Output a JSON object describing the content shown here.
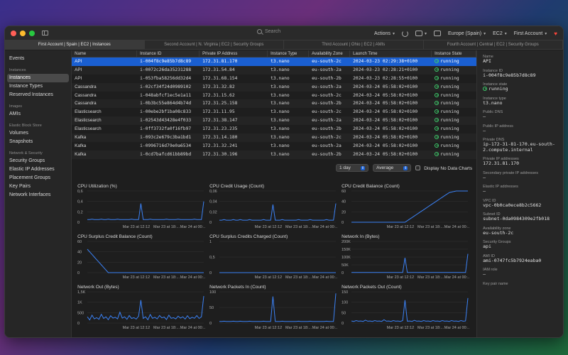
{
  "toolbar": {
    "search_placeholder": "Search",
    "actions_label": "Actions",
    "region_label": "Europe (Spain)",
    "service_label": "EC2",
    "account_label": "First Account"
  },
  "tabs": [
    {
      "label": "First Account | Spain | EC2 | Instances"
    },
    {
      "label": "Second Account | N. Virginia | EC2 | Security Groups"
    },
    {
      "label": "Third Account | Ohio | EC2 | AMIs"
    },
    {
      "label": "Fourth Account | Central | EC2 | Security Groups"
    }
  ],
  "sidebar": {
    "events": "Events",
    "sections": [
      {
        "title": "Instances",
        "items": [
          "Instances",
          "Instance Types",
          "Reserved Instances"
        ]
      },
      {
        "title": "Images",
        "items": [
          "AMIs"
        ]
      },
      {
        "title": "Elastic Block Store",
        "items": [
          "Volumes",
          "Snapshots"
        ]
      },
      {
        "title": "Network & Security",
        "items": [
          "Security Groups",
          "Elastic IP Addresses",
          "Placement Groups",
          "Key Pairs",
          "Network Interfaces"
        ]
      }
    ]
  },
  "table": {
    "columns": [
      "Name",
      "Instance ID",
      "Private IP Address",
      "Instance Type",
      "Availability Zone",
      "Launch Time",
      "Instance State"
    ],
    "rows": [
      [
        "API",
        "i-004f8c9e85b7d8c89",
        "172.31.81.170",
        "t3.nano",
        "eu-south-2c",
        "2024-03-23 02:29:38+0100",
        "running"
      ],
      [
        "API",
        "i-0072c26da35231288",
        "172.31.54.84",
        "t3.nano",
        "eu-south-2a",
        "2024-03-23 02:28:21+0100",
        "running"
      ],
      [
        "API",
        "i-053fba58256dd32d4",
        "172.31.68.154",
        "t3.nano",
        "eu-south-2b",
        "2024-03-23 02:28:55+0100",
        "running"
      ],
      [
        "Cassandra",
        "i-02cf34f24d0989102",
        "172.31.32.82",
        "t3.nano",
        "eu-south-2a",
        "2024-03-24 05:58:02+0100",
        "running"
      ],
      [
        "Cassandra",
        "i-048abfcf1ec5e1a11",
        "172.31.15.62",
        "t3.nano",
        "eu-south-2c",
        "2024-03-24 05:58:02+0100",
        "running"
      ],
      [
        "Cassandra",
        "i-0b3bc55e864d4b74d",
        "172.31.25.158",
        "t3.nano",
        "eu-south-2b",
        "2024-03-24 05:58:02+0100",
        "running"
      ],
      [
        "Elasticsearch",
        "i-00ebe2bf1ba08c833",
        "172.31.11.95",
        "t3.nano",
        "eu-south-2c",
        "2024-03-24 05:58:02+0100",
        "running"
      ],
      [
        "Elasticsearch",
        "i-02543d43428e4f033",
        "172.31.38.147",
        "t3.nano",
        "eu-south-2a",
        "2024-03-24 05:58:02+0100",
        "running"
      ],
      [
        "Elasticsearch",
        "i-0ff3732fa0f16fb97",
        "172.31.23.235",
        "t3.nano",
        "eu-south-2b",
        "2024-03-24 05:58:02+0100",
        "running"
      ],
      [
        "Kafka",
        "i-093c2e679c3ba1bd1",
        "172.31.14.180",
        "t3.nano",
        "eu-south-2c",
        "2024-03-24 05:58:02+0100",
        "running"
      ],
      [
        "Kafka",
        "i-0996716d79e0a6534",
        "172.31.32.241",
        "t3.nano",
        "eu-south-2a",
        "2024-03-24 05:58:02+0100",
        "running"
      ],
      [
        "Kafka",
        "i-0cd7bafcd61bb89bd",
        "172.31.30.196",
        "t3.nano",
        "eu-south-2b",
        "2024-03-24 05:58:02+0100",
        "running"
      ]
    ]
  },
  "chart_controls": {
    "range": "1 day",
    "stat": "Average",
    "no_data_label": "Display No Data Charts"
  },
  "chart_data": [
    {
      "type": "line",
      "title": "CPU Utilization (%)",
      "yticks": [
        "0,6",
        "0,4",
        "0,2",
        "0"
      ],
      "ylim": [
        0,
        0.6
      ],
      "xticks": [
        "Mar 23 at 12:12",
        "Mar 23 at 18:...",
        "Mar 24 at 00:..."
      ],
      "values": [
        0.05,
        0.05,
        0.06,
        0.05,
        0.05,
        0.05,
        0.06,
        0.05,
        0.05,
        0.06,
        0.05,
        0.05,
        0.05,
        0.06,
        0.05,
        0.05,
        0.05,
        0.05,
        0.05,
        0.06,
        0.05,
        0.05,
        0.05,
        0.36,
        0.05,
        0.05,
        0.05,
        0.06,
        0.05,
        0.05,
        0.05,
        0.05,
        0.05,
        0.05,
        0.06,
        0.05,
        0.05,
        0.05,
        0.05,
        0.06,
        0.05,
        0.05,
        0.05,
        0.05,
        0.05,
        0.05,
        0.06,
        0.05,
        0.05,
        0.05,
        0.4
      ]
    },
    {
      "type": "line",
      "title": "CPU Credit Usage (Count)",
      "yticks": [
        "0,06",
        "0,04",
        "0,02",
        "0"
      ],
      "ylim": [
        0,
        0.06
      ],
      "xticks": [
        "Mar 23 at 12:12",
        "Mar 23 at 18:...",
        "Mar 24 at 00:..."
      ],
      "values": [
        0.004,
        0.004,
        0.005,
        0.004,
        0.004,
        0.004,
        0.005,
        0.004,
        0.004,
        0.005,
        0.004,
        0.004,
        0.004,
        0.005,
        0.004,
        0.004,
        0.004,
        0.004,
        0.004,
        0.005,
        0.004,
        0.004,
        0.004,
        0.034,
        0.004,
        0.004,
        0.004,
        0.005,
        0.004,
        0.004,
        0.004,
        0.004,
        0.004,
        0.004,
        0.005,
        0.004,
        0.004,
        0.004,
        0.004,
        0.005,
        0.004,
        0.004,
        0.004,
        0.004,
        0.004,
        0.004,
        0.005,
        0.004,
        0.004,
        0.004,
        0.036
      ]
    },
    {
      "type": "line",
      "title": "CPU Credit Balance (Count)",
      "yticks": [
        "60",
        "40",
        "20",
        "0"
      ],
      "ylim": [
        0,
        60
      ],
      "xticks": [
        "Mar 23 at 12:12",
        "Mar 23 at 18:...",
        "Mar 24 at 00:..."
      ],
      "values": [
        0,
        0,
        0,
        0,
        0,
        0,
        0,
        0,
        0,
        0,
        0,
        0,
        0,
        0,
        0,
        0,
        0,
        0,
        0,
        0,
        0,
        0,
        0,
        0,
        3,
        6,
        9,
        12,
        15,
        18,
        21,
        24,
        27,
        30,
        33,
        36,
        39,
        42,
        45,
        48,
        51,
        54,
        57,
        58,
        59,
        60,
        61,
        62,
        63,
        64,
        65
      ]
    },
    {
      "type": "line",
      "title": "CPU Surplus Credit Balance (Count)",
      "yticks": [
        "60",
        "40",
        "20",
        "0"
      ],
      "ylim": [
        0,
        60
      ],
      "xticks": [
        "Mar 23 at 12:12",
        "Mar 23 at 18:...",
        "Mar 24 at 00:..."
      ],
      "values": [
        45,
        40,
        35,
        30,
        25,
        20,
        15,
        10,
        5,
        0,
        0,
        0,
        0,
        0,
        0,
        0,
        0,
        0,
        0,
        0,
        0,
        0,
        0,
        0,
        0,
        0,
        0,
        0,
        0,
        0,
        0,
        0,
        0,
        0,
        0,
        0,
        0,
        0,
        0,
        0,
        0,
        0,
        0,
        0,
        0,
        0,
        0,
        0,
        0,
        0,
        0
      ]
    },
    {
      "type": "line",
      "title": "CPU Surplus Credits Charged (Count)",
      "yticks": [
        "1",
        "0,5",
        "0"
      ],
      "ylim": [
        0,
        1
      ],
      "xticks": [
        "Mar 23 at 12:12",
        "Mar 23 at 18:...",
        "Mar 24 at 00:..."
      ],
      "values": [
        0,
        0,
        0,
        0,
        0,
        0,
        0,
        0,
        0,
        0,
        0,
        0,
        0,
        0,
        0,
        0,
        0,
        0,
        0,
        0,
        0,
        0,
        0,
        0,
        0,
        0,
        0,
        0,
        0,
        0,
        0,
        0,
        0,
        0,
        0,
        0,
        0,
        0,
        0,
        0,
        0,
        0,
        0,
        0,
        0,
        0,
        0,
        0,
        0,
        0,
        0
      ]
    },
    {
      "type": "line",
      "title": "Network In (Bytes)",
      "yticks": [
        "200K",
        "150K",
        "100K",
        "50K",
        "0"
      ],
      "ylim": [
        0,
        200000
      ],
      "xticks": [
        "Mar 23 at 12:12",
        "Mar 23 at 18:...",
        "Mar 24 at 00:..."
      ],
      "values": [
        1000,
        1000,
        1000,
        1000,
        1000,
        1000,
        1000,
        1000,
        1000,
        1000,
        1000,
        1000,
        1000,
        1000,
        1000,
        1000,
        1000,
        1000,
        1000,
        1000,
        1000,
        1000,
        1000,
        95000,
        1000,
        1000,
        1000,
        1000,
        1000,
        1000,
        1000,
        1000,
        1000,
        1000,
        1000,
        1000,
        1000,
        1000,
        1000,
        1000,
        1000,
        1000,
        1000,
        1000,
        1000,
        1000,
        1000,
        1000,
        1000,
        1000,
        120000
      ]
    },
    {
      "type": "line",
      "title": "Network Out (Bytes)",
      "yticks": [
        "1,5K",
        "1K",
        "500",
        "0"
      ],
      "ylim": [
        0,
        1500
      ],
      "xticks": [
        "Mar 23 at 12:12",
        "Mar 23 at 18:...",
        "Mar 24 at 00:..."
      ],
      "values": [
        300,
        150,
        380,
        200,
        260,
        180,
        420,
        220,
        300,
        160,
        350,
        240,
        280,
        200,
        520,
        240,
        300,
        180,
        360,
        220,
        260,
        190,
        330,
        1100,
        220,
        300,
        160,
        410,
        230,
        280,
        200,
        360,
        250,
        290,
        170,
        380,
        230,
        260,
        200,
        330,
        240,
        300,
        190,
        350,
        210,
        280,
        230,
        360,
        220,
        300,
        1300
      ]
    },
    {
      "type": "line",
      "title": "Network Packets In (Count)",
      "yticks": [
        "100",
        "50",
        "0"
      ],
      "ylim": [
        0,
        100
      ],
      "xticks": [
        "Mar 23 at 12:12",
        "Mar 23 at 18:...",
        "Mar 24 at 00:..."
      ],
      "values": [
        5,
        5,
        6,
        5,
        5,
        5,
        6,
        5,
        5,
        6,
        5,
        5,
        5,
        6,
        5,
        5,
        5,
        5,
        5,
        6,
        5,
        5,
        5,
        85,
        5,
        5,
        5,
        6,
        5,
        5,
        5,
        5,
        5,
        5,
        6,
        5,
        5,
        5,
        5,
        6,
        5,
        5,
        5,
        5,
        5,
        5,
        6,
        5,
        5,
        5,
        95
      ]
    },
    {
      "type": "line",
      "title": "Network Packets Out (Count)",
      "yticks": [
        "150",
        "100",
        "50",
        "0"
      ],
      "ylim": [
        0,
        150
      ],
      "xticks": [
        "Mar 23 at 12:12",
        "Mar 23 at 18:...",
        "Mar 24 at 00:..."
      ],
      "values": [
        10,
        8,
        12,
        9,
        10,
        8,
        14,
        9,
        10,
        8,
        12,
        9,
        10,
        8,
        16,
        9,
        10,
        8,
        12,
        9,
        10,
        8,
        12,
        110,
        9,
        10,
        8,
        13,
        9,
        10,
        8,
        12,
        9,
        10,
        8,
        12,
        9,
        10,
        8,
        12,
        9,
        10,
        8,
        12,
        9,
        10,
        8,
        12,
        9,
        10,
        120
      ]
    }
  ],
  "detail": [
    {
      "label": "Name",
      "value": "API"
    },
    {
      "label": "Instance ID",
      "value": "i-004f8c9e85b7d8c89"
    },
    {
      "label": "Instance state",
      "value": "running"
    },
    {
      "label": "Instance type",
      "value": "t3.nano"
    },
    {
      "label": "Public DNS",
      "value": "–"
    },
    {
      "label": "Public IP address",
      "value": "–"
    },
    {
      "label": "Private DNS",
      "value": "ip-172-31-81-170.eu-south-2.compute.internal"
    },
    {
      "label": "Private IP addresses",
      "value": "172.31.81.170"
    },
    {
      "label": "Secondary private IP addresses",
      "value": "–"
    },
    {
      "label": "Elastic IP addresses",
      "value": "–"
    },
    {
      "label": "VPC ID",
      "value": "vpc-0b0ca0ece8b2c5662"
    },
    {
      "label": "Subnet ID",
      "value": "subnet-0da0984309e2fb018"
    },
    {
      "label": "Availability zone",
      "value": "eu-south-2c"
    },
    {
      "label": "Security Groups",
      "value": "api"
    },
    {
      "label": "AMI ID",
      "value": "ami-0747fc5b7924eaba0"
    },
    {
      "label": "IAM role",
      "value": "–"
    },
    {
      "label": "Key pair name",
      "value": ""
    }
  ],
  "colors": {
    "accent": "#1a5fd1",
    "running": "#3ecf6c",
    "chart_line": "#3b82f6"
  }
}
